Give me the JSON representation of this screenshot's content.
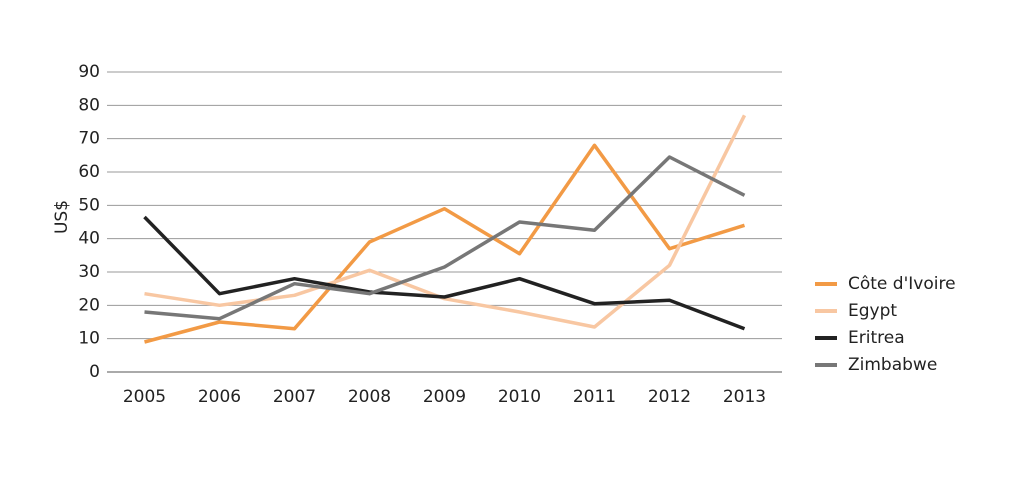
{
  "chart_data": {
    "type": "line",
    "ylabel": "US$",
    "xlabel": "",
    "categories": [
      "2005",
      "2006",
      "2007",
      "2008",
      "2009",
      "2010",
      "2011",
      "2012",
      "2013"
    ],
    "ylim": [
      0,
      90
    ],
    "yticks": [
      0,
      10,
      20,
      30,
      40,
      50,
      60,
      70,
      80,
      90
    ],
    "grid": true,
    "legend_position": "right",
    "series": [
      {
        "name": "Côte d'Ivoire",
        "color": "#F29A45",
        "values": [
          9,
          15,
          13,
          39,
          49,
          35.5,
          68,
          37,
          44
        ]
      },
      {
        "name": "Egypt",
        "color": "#F8C7A2",
        "values": [
          23.5,
          20,
          23,
          30.5,
          22,
          18,
          13.5,
          32,
          77
        ]
      },
      {
        "name": "Eritrea",
        "color": "#222222",
        "values": [
          46.5,
          23.5,
          28,
          24,
          22.5,
          28,
          20.5,
          21.5,
          13
        ]
      },
      {
        "name": "Zimbabwe",
        "color": "#777777",
        "values": [
          18,
          16,
          26.5,
          23.5,
          31.5,
          45,
          42.5,
          64.5,
          53
        ]
      }
    ]
  }
}
